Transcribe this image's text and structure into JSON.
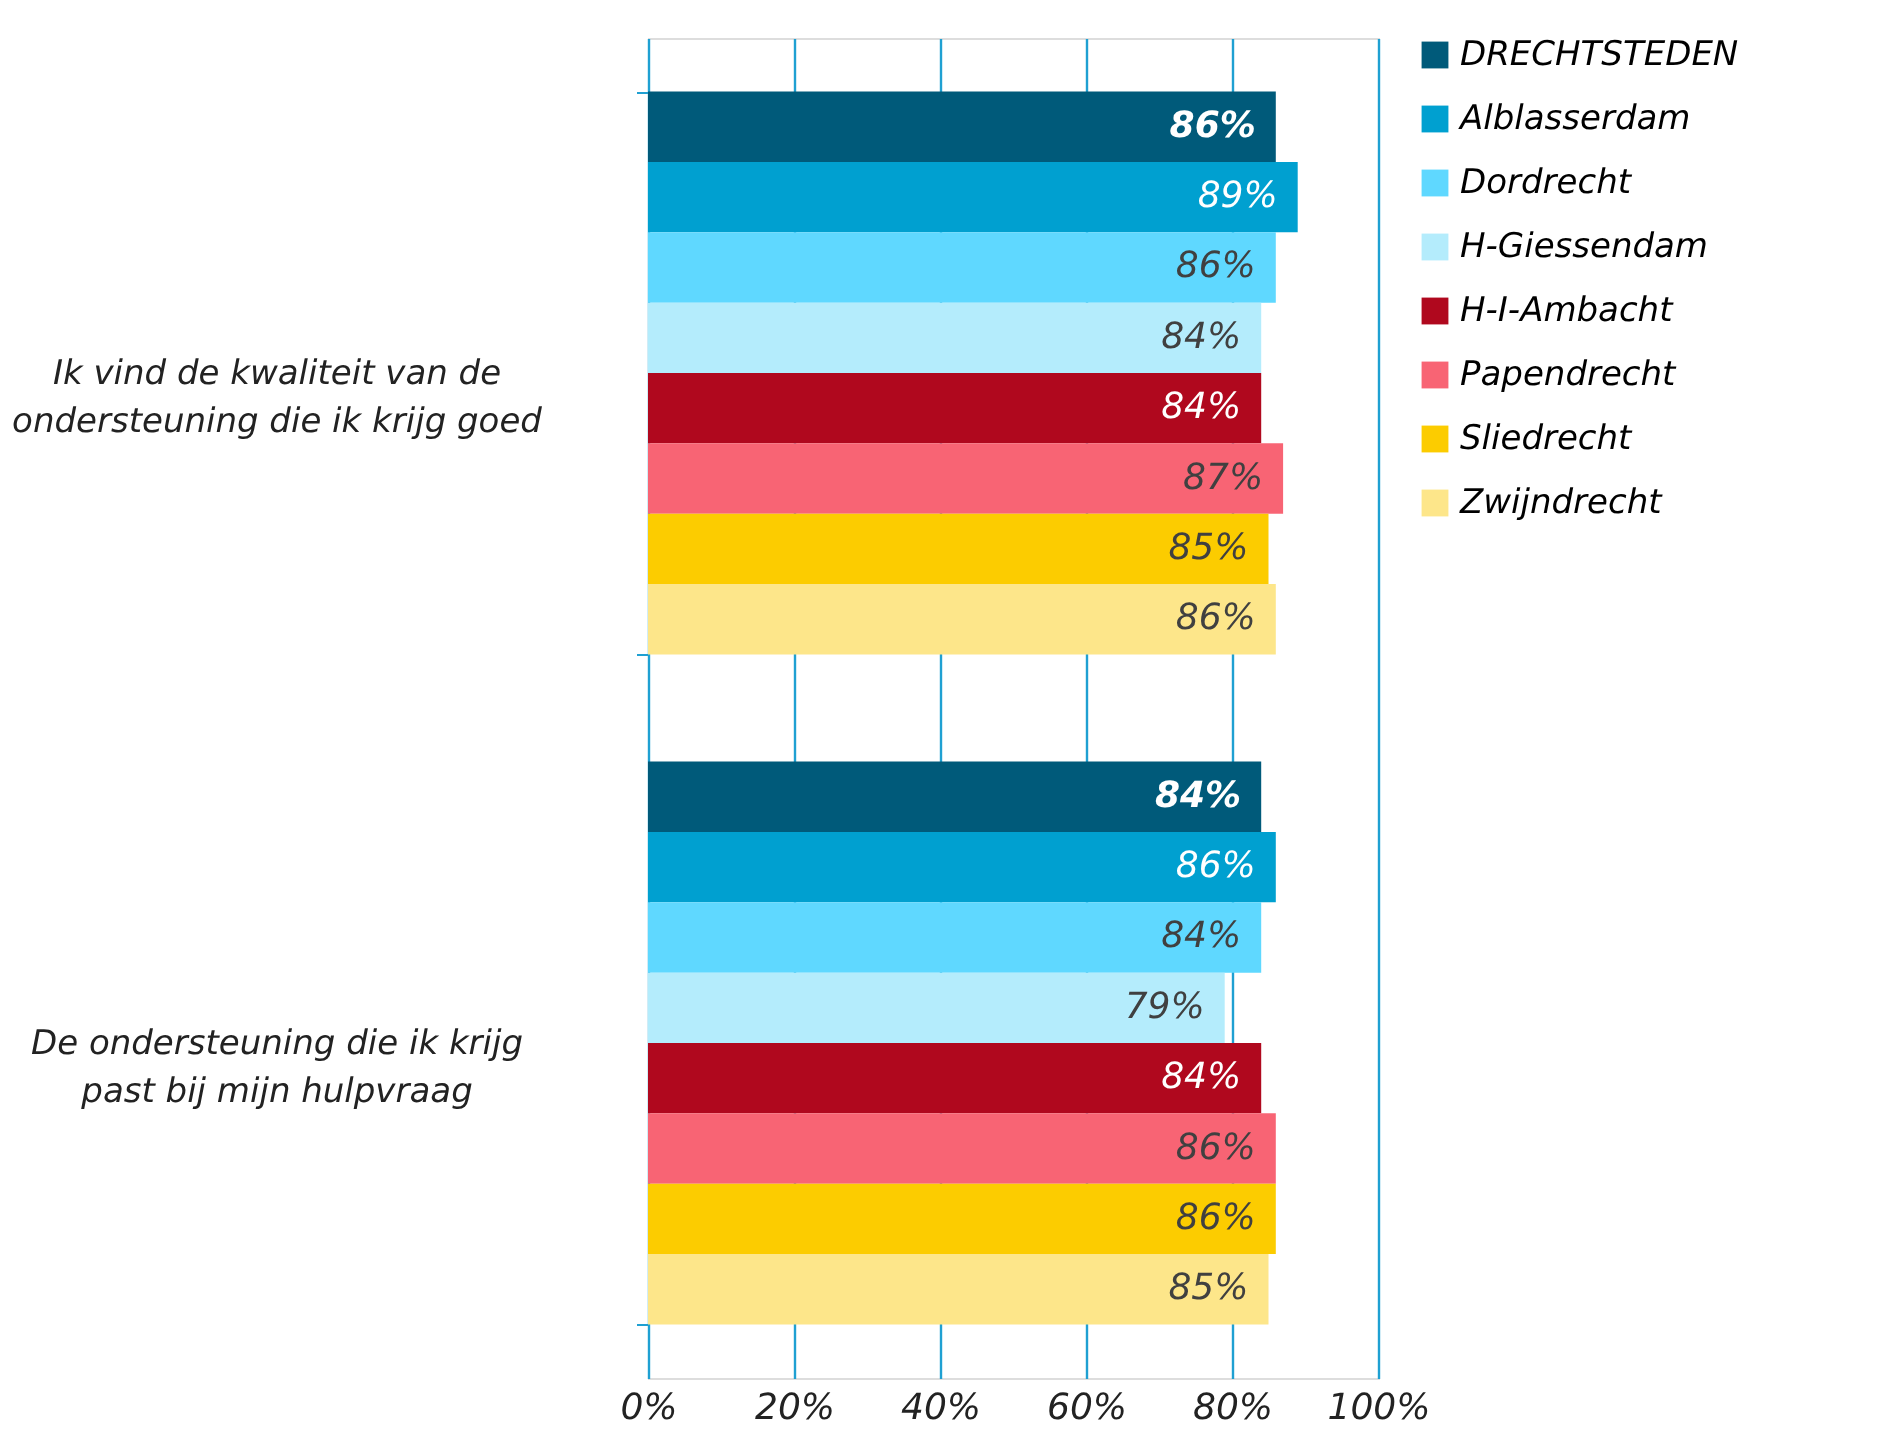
{
  "chart_data": {
    "type": "bar",
    "orientation": "horizontal",
    "categories": [
      "Ik vind de kwaliteit van de ondersteuning die ik krijg goed",
      "De ondersteuning die ik krijg past bij mijn hulpvraag"
    ],
    "series": [
      {
        "name": "DRECHTSTEDEN",
        "color": "#005a7a",
        "values": [
          86,
          84
        ],
        "value_labels": [
          "86%",
          "84%"
        ]
      },
      {
        "name": "Alblasserdam",
        "color": "#00a0d0",
        "values": [
          89,
          86
        ],
        "value_labels": [
          "89%",
          "86%"
        ]
      },
      {
        "name": "Dordrecht",
        "color": "#5fd8ff",
        "values": [
          86,
          84
        ],
        "value_labels": [
          "86%",
          "84%"
        ]
      },
      {
        "name": "H-Giessendam",
        "color": "#b4ecfc",
        "values": [
          84,
          79
        ],
        "value_labels": [
          "84%",
          "79%"
        ]
      },
      {
        "name": "H-I-Ambacht",
        "color": "#b0081e",
        "values": [
          84,
          84
        ],
        "value_labels": [
          "84%",
          "84%"
        ]
      },
      {
        "name": "Papendrecht",
        "color": "#f86474",
        "values": [
          87,
          86
        ],
        "value_labels": [
          "87%",
          "86%"
        ]
      },
      {
        "name": "Sliedrecht",
        "color": "#fccc00",
        "values": [
          85,
          86
        ],
        "value_labels": [
          "85%",
          "86%"
        ]
      },
      {
        "name": "Zwijndrecht",
        "color": "#fde68a",
        "values": [
          86,
          85
        ],
        "value_labels": [
          "86%",
          "85%"
        ]
      }
    ],
    "xlim": [
      0,
      100
    ],
    "xticks": [
      {
        "value": 0,
        "label": "0%"
      },
      {
        "value": 20,
        "label": "20%"
      },
      {
        "value": 40,
        "label": "40%"
      },
      {
        "value": 60,
        "label": "60%"
      },
      {
        "value": 80,
        "label": "80%"
      },
      {
        "value": 100,
        "label": "100%"
      }
    ],
    "grid": "x",
    "legend": "right"
  }
}
